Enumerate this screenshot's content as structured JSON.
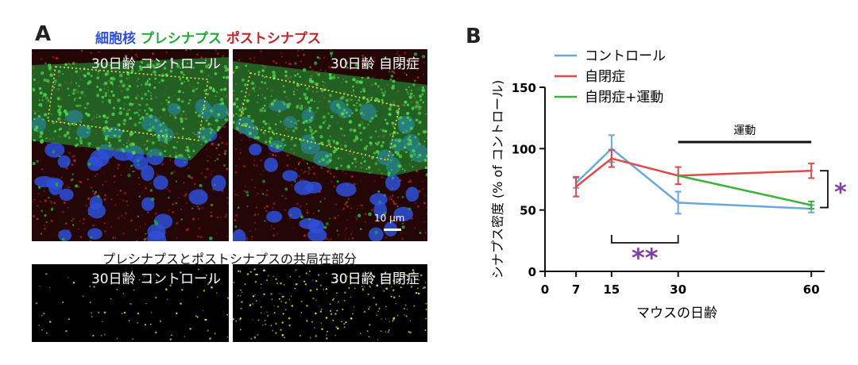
{
  "panel_a": {
    "letter": "A",
    "legend": {
      "nucleus": "細胞核",
      "presynapse": "プレシナプス",
      "postsynapse": "ポストシナプス"
    },
    "image_control": "30日齢 コントロール",
    "image_autism": "30日齢 自閉症",
    "scale_bar": "10 μm",
    "coloc_caption": "プレシナプスとポストシナプスの共局在部分",
    "coloc_control": "30日齢 コントロール",
    "coloc_autism": "30日齢 自閉症"
  },
  "colors": {
    "nucleus": "#2e50d8",
    "presynapse": "#23a83a",
    "postsynapse": "#c0252b",
    "control": "#6aa8dc",
    "autism": "#de4a4a",
    "exercise": "#3cb23c",
    "significance": "#7e3fa6",
    "roi": "#f0e040"
  },
  "chart_data": {
    "type": "line",
    "panel_letter": "B",
    "xlabel": "マウスの日齢",
    "ylabel": "シナプス密度 (% of コントロール)",
    "xticks": [
      0,
      7,
      15,
      30,
      60
    ],
    "yticks": [
      0,
      50,
      100,
      150
    ],
    "xlim": [
      0,
      63
    ],
    "ylim": [
      0,
      150
    ],
    "series": [
      {
        "name": "コントロール",
        "color": "#6aa8dc",
        "x": [
          7,
          15,
          30,
          60
        ],
        "y": [
          72,
          100,
          56,
          51
        ],
        "err": [
          4,
          11,
          9,
          3
        ]
      },
      {
        "name": "自閉症",
        "color": "#de4a4a",
        "x": [
          7,
          15,
          30,
          60
        ],
        "y": [
          69,
          92,
          78,
          82
        ],
        "err": [
          8,
          7,
          7,
          6
        ]
      },
      {
        "name": "自閉症+運動",
        "color": "#3cb23c",
        "x": [
          30,
          60
        ],
        "y": [
          78,
          54
        ],
        "err": [
          0,
          3
        ]
      }
    ],
    "annotations": {
      "exercise_label": "運動",
      "exercise_range": [
        30,
        60
      ],
      "sig_days": "**",
      "sig_days_range": [
        15,
        30
      ],
      "sig_groups": "*"
    }
  }
}
